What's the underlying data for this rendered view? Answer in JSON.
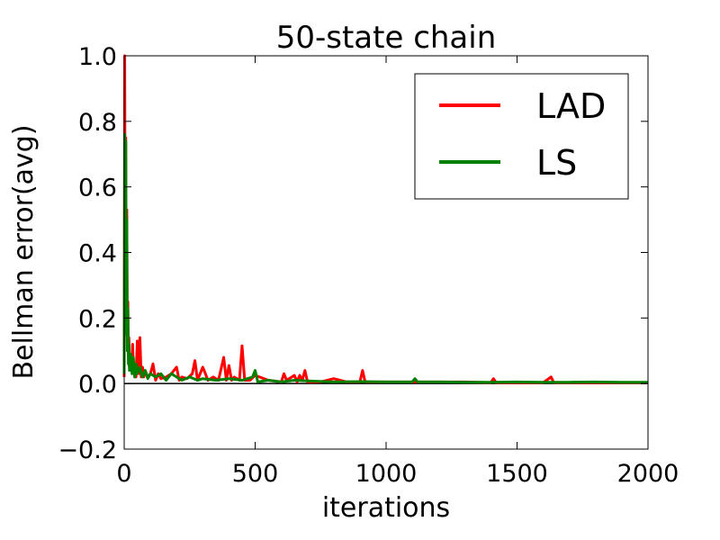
{
  "chart_data": {
    "type": "line",
    "title": "50-state chain",
    "xlabel": "iterations",
    "ylabel": "Bellman error(avg)",
    "xlim": [
      0,
      2000
    ],
    "ylim": [
      -0.2,
      1.0
    ],
    "xticks": [
      0,
      500,
      1000,
      1500,
      2000
    ],
    "yticks": [
      -0.2,
      0.0,
      0.2,
      0.4,
      0.6,
      0.8,
      1.0
    ],
    "xtick_labels": [
      "0",
      "500",
      "1000",
      "1500",
      "2000"
    ],
    "ytick_labels": [
      "−0.2",
      "0.0",
      "0.2",
      "0.4",
      "0.6",
      "0.8",
      "1.0"
    ],
    "grid": false,
    "legend": {
      "position": "top-right"
    },
    "series": [
      {
        "name": "LAD",
        "color": "#ff0000",
        "x": [
          0,
          2,
          4,
          6,
          8,
          10,
          12,
          14,
          16,
          18,
          20,
          24,
          28,
          32,
          36,
          40,
          45,
          50,
          55,
          60,
          65,
          70,
          75,
          80,
          90,
          100,
          110,
          120,
          130,
          140,
          160,
          180,
          200,
          210,
          220,
          240,
          260,
          270,
          280,
          300,
          320,
          340,
          360,
          380,
          390,
          400,
          410,
          420,
          440,
          450,
          460,
          480,
          500,
          550,
          600,
          610,
          620,
          650,
          660,
          670,
          680,
          690,
          700,
          750,
          800,
          850,
          900,
          910,
          920,
          950,
          1000,
          1100,
          1200,
          1300,
          1400,
          1410,
          1420,
          1500,
          1600,
          1630,
          1640,
          1700,
          1800,
          1900,
          2000
        ],
        "values": [
          0.02,
          1.0,
          0.3,
          0.75,
          0.2,
          0.53,
          0.1,
          0.25,
          0.08,
          0.14,
          0.05,
          0.08,
          0.04,
          0.12,
          0.03,
          0.06,
          0.02,
          0.13,
          0.03,
          0.14,
          0.02,
          0.05,
          0.02,
          0.04,
          0.02,
          0.03,
          0.06,
          0.01,
          0.03,
          0.015,
          0.02,
          0.03,
          0.05,
          0.01,
          0.02,
          0.015,
          0.03,
          0.07,
          0.01,
          0.05,
          0.01,
          0.02,
          0.01,
          0.08,
          0.01,
          0.055,
          0.01,
          0.02,
          0.01,
          0.115,
          0.01,
          0.01,
          0.025,
          0.01,
          0.005,
          0.03,
          0.01,
          0.025,
          0.005,
          0.025,
          0.01,
          0.04,
          0.005,
          0.005,
          0.015,
          0.005,
          0.005,
          0.04,
          0.005,
          0.005,
          0.005,
          0.005,
          0.005,
          0.005,
          0.003,
          0.015,
          0.003,
          0.003,
          0.003,
          0.02,
          0.003,
          0.003,
          0.003,
          0.003,
          0.003
        ]
      },
      {
        "name": "LS",
        "color": "#008000",
        "x": [
          0,
          2,
          4,
          6,
          8,
          10,
          12,
          14,
          16,
          18,
          20,
          25,
          30,
          35,
          40,
          45,
          50,
          60,
          70,
          80,
          90,
          100,
          120,
          140,
          160,
          180,
          200,
          220,
          250,
          280,
          300,
          350,
          400,
          450,
          490,
          500,
          510,
          550,
          600,
          650,
          700,
          800,
          900,
          1000,
          1100,
          1110,
          1120,
          1200,
          1300,
          1400,
          1500,
          1600,
          1700,
          1800,
          1900,
          2000
        ],
        "values": [
          0.03,
          0.76,
          0.15,
          0.74,
          0.25,
          0.5,
          0.1,
          0.23,
          0.06,
          0.12,
          0.04,
          0.09,
          0.03,
          0.08,
          0.02,
          0.06,
          0.03,
          0.05,
          0.02,
          0.04,
          0.015,
          0.03,
          0.02,
          0.03,
          0.01,
          0.03,
          0.02,
          0.01,
          0.02,
          0.01,
          0.015,
          0.01,
          0.015,
          0.01,
          0.02,
          0.04,
          0.005,
          0.01,
          0.005,
          0.01,
          0.008,
          0.005,
          0.006,
          0.005,
          0.005,
          0.015,
          0.005,
          0.005,
          0.004,
          0.004,
          0.005,
          0.004,
          0.004,
          0.005,
          0.004,
          0.004
        ]
      }
    ]
  }
}
